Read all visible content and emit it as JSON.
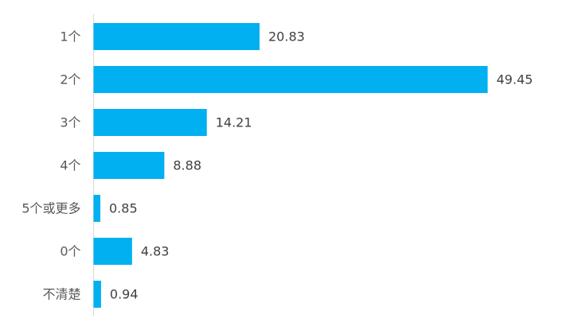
{
  "chart_data": {
    "type": "bar",
    "orientation": "horizontal",
    "categories": [
      "1个",
      "2个",
      "3个",
      "4个",
      "5个或更多",
      "0个",
      "不清楚"
    ],
    "values": [
      20.83,
      49.45,
      14.21,
      8.88,
      0.85,
      4.83,
      0.94
    ],
    "value_labels": [
      "20.83",
      "49.45",
      "14.21",
      "8.88",
      "0.85",
      "4.83",
      "0.94"
    ],
    "title": "",
    "xlabel": "",
    "ylabel": "",
    "xlim": [
      0,
      49.45
    ],
    "grid": false,
    "legend": "none",
    "bar_color": "#00B0F0",
    "axis_color": "#D9D9D9"
  }
}
